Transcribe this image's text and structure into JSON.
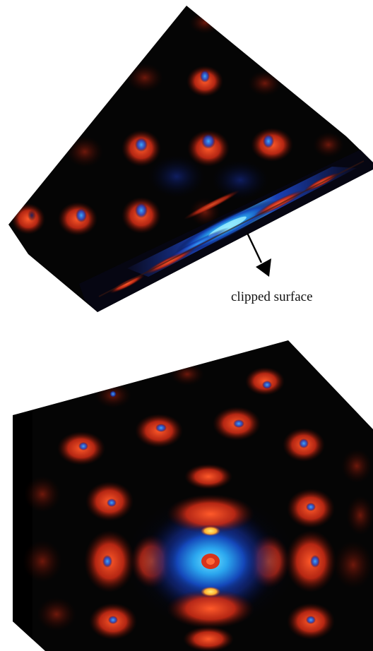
{
  "annotation": {
    "label": "clipped surface"
  },
  "colors": {
    "background": "#ffffff",
    "volume_base": "#050505",
    "positive": "#e53a1a",
    "positive_peak": "#ffd23a",
    "negative": "#1f4fd6",
    "negative_peak": "#3cc2f2",
    "arrow": "#000000"
  },
  "panels": [
    {
      "name": "clipped-volume-view",
      "description_visible": false
    },
    {
      "name": "full-volume-view",
      "description_visible": false
    }
  ]
}
